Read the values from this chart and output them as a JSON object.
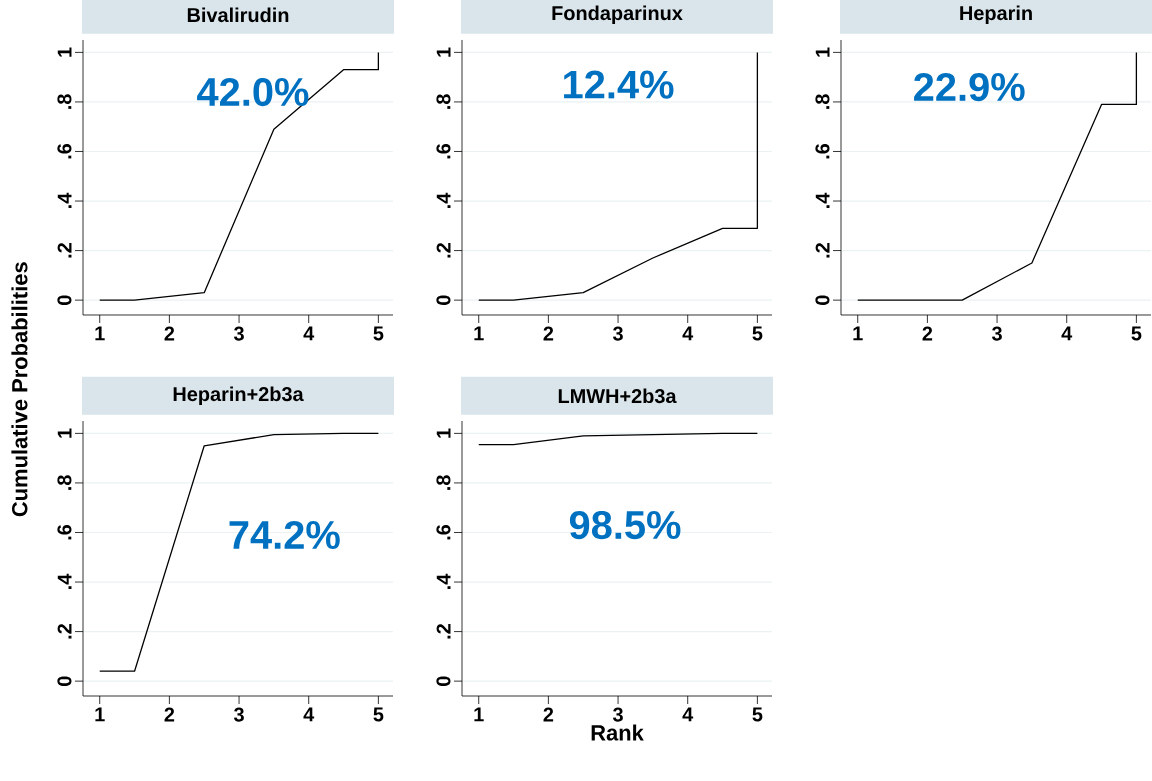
{
  "chart_data": [
    {
      "type": "line",
      "title": "Bivalirudin",
      "ylabel": "Cumulative Probabilities",
      "annotations": [
        "42.0%"
      ],
      "x": [
        1,
        1.5,
        2.5,
        3.5,
        4.5,
        5,
        5
      ],
      "series": [
        {
          "color": "#000000",
          "values": [
            0.0,
            0.0,
            0.03,
            0.69,
            0.93,
            0.93,
            1.0
          ]
        }
      ],
      "xlim": [
        0.76,
        5.21
      ],
      "ylim": [
        -0.06,
        1.05
      ],
      "xticks": [
        1,
        2,
        3,
        4,
        5
      ],
      "yticks": [
        0,
        {
          "value": 0.2,
          "label": ".2"
        },
        {
          "value": 0.4,
          "label": ".4"
        },
        {
          "value": 0.6,
          "label": ".6"
        },
        {
          "value": 0.8,
          "label": ".8"
        },
        1
      ],
      "grid": "y"
    },
    {
      "type": "line",
      "title": "Fondaparinux",
      "annotations": [
        "12.4%"
      ],
      "x": [
        1,
        1.5,
        2.5,
        3.5,
        4.5,
        5,
        5
      ],
      "series": [
        {
          "color": "#000000",
          "values": [
            0.0,
            0.0,
            0.03,
            0.17,
            0.29,
            0.29,
            1.0
          ]
        }
      ],
      "xlim": [
        0.76,
        5.21
      ],
      "ylim": [
        -0.06,
        1.05
      ],
      "xticks": [
        1,
        2,
        3,
        4,
        5
      ],
      "yticks": [
        0,
        {
          "value": 0.2,
          "label": ".2"
        },
        {
          "value": 0.4,
          "label": ".4"
        },
        {
          "value": 0.6,
          "label": ".6"
        },
        {
          "value": 0.8,
          "label": ".8"
        },
        1
      ],
      "grid": "y"
    },
    {
      "type": "line",
      "title": "Heparin",
      "annotations": [
        "22.9%"
      ],
      "x": [
        1,
        1.5,
        2.5,
        3.5,
        4.5,
        5,
        5
      ],
      "series": [
        {
          "color": "#000000",
          "values": [
            0.0,
            0.0,
            0.0,
            0.15,
            0.79,
            0.79,
            1.0
          ]
        }
      ],
      "xlim": [
        0.76,
        5.21
      ],
      "ylim": [
        -0.06,
        1.05
      ],
      "xticks": [
        1,
        2,
        3,
        4,
        5
      ],
      "yticks": [
        0,
        {
          "value": 0.2,
          "label": ".2"
        },
        {
          "value": 0.4,
          "label": ".4"
        },
        {
          "value": 0.6,
          "label": ".6"
        },
        {
          "value": 0.8,
          "label": ".8"
        },
        1
      ],
      "grid": "y"
    },
    {
      "type": "line",
      "title": "Heparin+2b3a",
      "annotations": [
        "74.2%"
      ],
      "x": [
        1,
        1.5,
        2.5,
        3.5,
        4.5,
        5
      ],
      "series": [
        {
          "color": "#000000",
          "values": [
            0.04,
            0.04,
            0.95,
            0.995,
            1.0,
            1.0
          ]
        }
      ],
      "xlim": [
        0.76,
        5.21
      ],
      "ylim": [
        -0.06,
        1.05
      ],
      "xticks": [
        1,
        2,
        3,
        4,
        5
      ],
      "yticks": [
        0,
        {
          "value": 0.2,
          "label": ".2"
        },
        {
          "value": 0.4,
          "label": ".4"
        },
        {
          "value": 0.6,
          "label": ".6"
        },
        {
          "value": 0.8,
          "label": ".8"
        },
        1
      ],
      "grid": "y"
    },
    {
      "type": "line",
      "title": "LMWH+2b3a",
      "xlabel": "Rank",
      "annotations": [
        "98.5%"
      ],
      "x": [
        1,
        1.5,
        2.5,
        3.5,
        4.5,
        5
      ],
      "series": [
        {
          "color": "#000000",
          "values": [
            0.955,
            0.955,
            0.99,
            0.995,
            1.0,
            1.0
          ]
        }
      ],
      "xlim": [
        0.76,
        5.21
      ],
      "ylim": [
        -0.06,
        1.05
      ],
      "xticks": [
        1,
        2,
        3,
        4,
        5
      ],
      "yticks": [
        0,
        {
          "value": 0.2,
          "label": ".2"
        },
        {
          "value": 0.4,
          "label": ".4"
        },
        {
          "value": 0.6,
          "label": ".6"
        },
        {
          "value": 0.8,
          "label": ".8"
        },
        1
      ],
      "grid": "y"
    }
  ]
}
